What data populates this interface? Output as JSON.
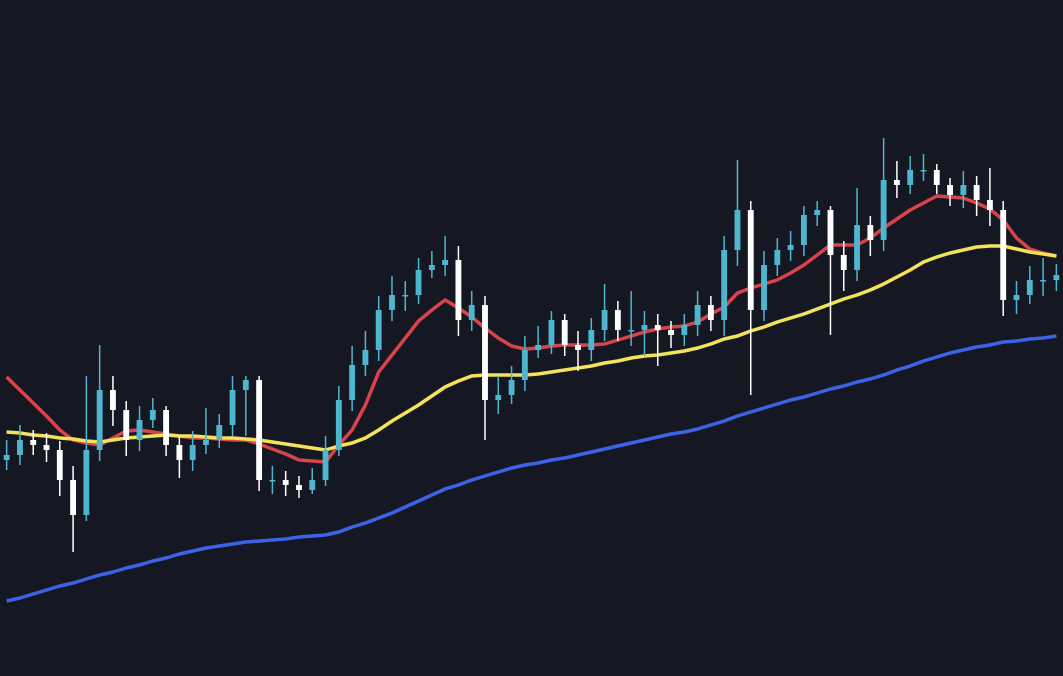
{
  "chart_data": {
    "type": "candlestick",
    "ylim": [
      0,
      676
    ],
    "up_color": "#4fb6cf",
    "down_color": "#ffffff",
    "open": [
      216,
      221,
      236,
      231,
      226,
      196,
      161,
      226,
      286,
      266,
      236,
      256,
      266,
      231,
      216,
      231,
      236,
      251,
      286,
      296,
      196,
      196,
      191,
      186,
      196,
      226,
      276,
      311,
      326,
      366,
      381,
      381,
      406,
      411,
      416,
      356,
      371,
      276,
      281,
      296,
      326,
      331,
      356,
      331,
      326,
      346,
      366,
      346,
      346,
      351,
      346,
      341,
      351,
      371,
      356,
      426,
      466,
      366,
      411,
      426,
      431,
      461,
      466,
      421,
      406,
      451,
      436,
      496,
      491,
      506,
      506,
      491,
      481,
      491,
      476,
      466,
      376,
      381,
      396,
      396
    ],
    "high": [
      236,
      251,
      246,
      243,
      235,
      210,
      300,
      331,
      300,
      275,
      270,
      278,
      270,
      240,
      245,
      268,
      262,
      300,
      300,
      300,
      210,
      205,
      200,
      208,
      240,
      290,
      330,
      345,
      380,
      400,
      395,
      418,
      425,
      440,
      430,
      385,
      380,
      300,
      310,
      340,
      350,
      365,
      362,
      345,
      358,
      392,
      375,
      385,
      365,
      362,
      355,
      362,
      385,
      380,
      440,
      516,
      475,
      425,
      438,
      445,
      470,
      475,
      470,
      435,
      488,
      460,
      538,
      515,
      520,
      522,
      512,
      498,
      505,
      500,
      508,
      475,
      395,
      410,
      418,
      412
    ],
    "low": [
      206,
      211,
      221,
      214,
      180,
      124,
      155,
      215,
      250,
      220,
      225,
      248,
      220,
      198,
      205,
      222,
      228,
      240,
      240,
      185,
      182,
      180,
      178,
      182,
      190,
      220,
      265,
      300,
      315,
      355,
      365,
      372,
      398,
      400,
      340,
      345,
      236,
      262,
      272,
      285,
      318,
      322,
      320,
      305,
      315,
      335,
      335,
      330,
      320,
      310,
      328,
      330,
      340,
      345,
      340,
      410,
      281,
      355,
      400,
      415,
      420,
      450,
      341,
      385,
      395,
      420,
      425,
      478,
      482,
      495,
      482,
      470,
      468,
      460,
      450,
      360,
      362,
      372,
      380,
      385
    ],
    "close": [
      221,
      236,
      231,
      226,
      196,
      161,
      226,
      286,
      266,
      236,
      256,
      266,
      231,
      216,
      231,
      236,
      251,
      286,
      296,
      196,
      196,
      191,
      186,
      196,
      226,
      276,
      311,
      326,
      366,
      381,
      381,
      406,
      411,
      416,
      356,
      371,
      276,
      281,
      296,
      326,
      331,
      356,
      331,
      326,
      346,
      366,
      346,
      346,
      351,
      346,
      341,
      351,
      371,
      356,
      426,
      466,
      366,
      411,
      426,
      431,
      461,
      466,
      421,
      406,
      451,
      436,
      496,
      491,
      506,
      506,
      491,
      481,
      491,
      476,
      466,
      376,
      381,
      396,
      396,
      401
    ],
    "lines": [
      {
        "color": "#d9434b",
        "values": [
          299,
          286,
          273,
          260,
          246,
          236,
          233,
          231,
          238,
          245,
          246,
          244,
          242,
          240,
          238,
          238,
          237,
          236,
          236,
          232,
          227,
          222,
          216,
          215,
          214,
          231,
          246,
          271,
          304,
          321,
          338,
          355,
          366,
          376,
          368,
          359,
          348,
          338,
          330,
          327,
          328,
          330,
          331,
          331,
          331,
          332,
          336,
          340,
          344,
          347,
          349,
          350,
          354,
          362,
          369,
          383,
          388,
          392,
          396,
          403,
          411,
          421,
          431,
          431,
          431,
          438,
          448,
          457,
          466,
          473,
          480,
          479,
          478,
          473,
          467,
          456,
          438,
          427,
          423,
          420
        ]
      },
      {
        "color": "#f3e25a",
        "values": [
          244,
          243,
          241,
          240,
          238,
          237,
          235,
          234,
          236,
          238,
          239,
          240,
          241,
          240,
          240,
          239,
          238,
          238,
          237,
          236,
          234,
          232,
          230,
          228,
          226,
          230,
          233,
          238,
          246,
          255,
          263,
          271,
          280,
          289,
          295,
          300,
          301,
          301,
          301,
          301,
          302,
          304,
          306,
          308,
          310,
          313,
          315,
          318,
          320,
          321,
          323,
          325,
          328,
          332,
          337,
          340,
          345,
          349,
          354,
          358,
          362,
          367,
          372,
          377,
          381,
          386,
          392,
          399,
          406,
          414,
          419,
          423,
          426,
          429,
          430,
          430,
          427,
          424,
          422,
          420
        ]
      },
      {
        "color": "#3c62e8",
        "values": [
          75,
          78,
          82,
          86,
          90,
          93,
          97,
          101,
          104,
          108,
          111,
          115,
          118,
          122,
          125,
          128,
          130,
          132,
          134,
          135,
          136,
          137,
          139,
          140,
          141,
          144,
          149,
          153,
          158,
          163,
          169,
          175,
          181,
          187,
          191,
          196,
          200,
          204,
          208,
          211,
          213,
          216,
          218,
          221,
          224,
          227,
          230,
          233,
          236,
          239,
          242,
          244,
          247,
          251,
          255,
          260,
          264,
          268,
          272,
          276,
          279,
          283,
          287,
          290,
          294,
          297,
          301,
          306,
          310,
          315,
          319,
          323,
          326,
          329,
          331,
          334,
          335,
          337,
          338,
          340
        ]
      }
    ]
  }
}
